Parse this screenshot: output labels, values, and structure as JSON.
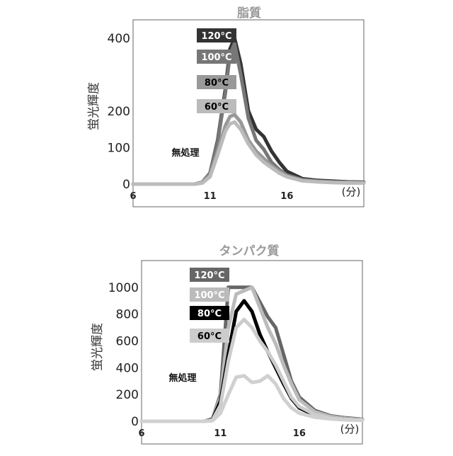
{
  "chart_data": [
    {
      "type": "line",
      "title": "脂質",
      "ylabel": "蛍光輝度",
      "xunit": "(分)",
      "annotation": "無処理",
      "xlim": [
        6,
        21
      ],
      "ylim": [
        0,
        450
      ],
      "xticks": [
        6,
        11,
        16
      ],
      "yticks": [
        0,
        100,
        200,
        400
      ],
      "series": [
        {
          "name": "120°C",
          "color": "#333333",
          "x": [
            6,
            10,
            10.5,
            11,
            11.5,
            12,
            12.3,
            12.6,
            13,
            13.5,
            14,
            14.5,
            15,
            15.5,
            16,
            17,
            18,
            19,
            20,
            21
          ],
          "y": [
            0,
            0,
            5,
            30,
            120,
            260,
            370,
            400,
            330,
            200,
            150,
            130,
            90,
            60,
            35,
            15,
            10,
            8,
            6,
            5
          ]
        },
        {
          "name": "100°C",
          "color": "#777777",
          "x": [
            6,
            10,
            10.5,
            11,
            11.5,
            12,
            12.3,
            12.6,
            13,
            13.5,
            14,
            14.5,
            15,
            15.5,
            16,
            17,
            18,
            19,
            20,
            21
          ],
          "y": [
            0,
            0,
            5,
            30,
            115,
            250,
            355,
            385,
            300,
            180,
            120,
            95,
            60,
            40,
            25,
            12,
            8,
            6,
            5,
            4
          ]
        },
        {
          "name": "80°C",
          "color": "#999999",
          "x": [
            6,
            10,
            10.5,
            11,
            11.5,
            12,
            12.3,
            12.6,
            13,
            13.5,
            14,
            14.5,
            15,
            15.5,
            16,
            17,
            18,
            19,
            20,
            21
          ],
          "y": [
            0,
            0,
            4,
            25,
            90,
            160,
            185,
            190,
            170,
            120,
            90,
            70,
            50,
            35,
            22,
            10,
            7,
            5,
            4,
            3
          ]
        },
        {
          "name": "60°C",
          "color": "#bbbbbb",
          "x": [
            6,
            10,
            10.5,
            11,
            11.5,
            12,
            12.3,
            12.6,
            13,
            13.5,
            14,
            14.5,
            15,
            15.5,
            16,
            17,
            18,
            19,
            20,
            21
          ],
          "y": [
            0,
            0,
            3,
            20,
            80,
            145,
            165,
            170,
            150,
            110,
            80,
            60,
            45,
            30,
            20,
            9,
            6,
            4,
            3,
            3
          ]
        }
      ]
    },
    {
      "type": "line",
      "title": "タンパク質",
      "ylabel": "蛍光輝度",
      "xunit": "(分)",
      "annotation": "無処理",
      "xlim": [
        6,
        20
      ],
      "ylim": [
        0,
        1200
      ],
      "xticks": [
        6,
        11,
        16
      ],
      "yticks": [
        0,
        200,
        400,
        600,
        800,
        1000
      ],
      "series": [
        {
          "name": "120°C",
          "color": "#666666",
          "x": [
            6,
            10,
            10.5,
            11,
            11.5,
            12,
            13,
            14,
            14.5,
            15,
            15.5,
            16,
            17,
            18,
            19,
            20
          ],
          "y": [
            0,
            0,
            20,
            200,
            1000,
            1000,
            1000,
            780,
            700,
            500,
            300,
            180,
            80,
            40,
            25,
            15
          ]
        },
        {
          "name": "100°C",
          "color": "#bbbbbb",
          "x": [
            6,
            10,
            10.5,
            11,
            11.5,
            12,
            13,
            14,
            14.5,
            15,
            15.5,
            16,
            17,
            18,
            19,
            20
          ],
          "y": [
            0,
            0,
            20,
            180,
            700,
            950,
            1000,
            700,
            580,
            420,
            280,
            160,
            70,
            35,
            20,
            12
          ]
        },
        {
          "name": "80°C",
          "color": "#000000",
          "x": [
            6,
            10,
            10.5,
            11,
            11.5,
            12,
            12.5,
            13,
            13.5,
            14,
            14.5,
            15,
            15.5,
            16,
            17,
            18,
            19,
            20
          ],
          "y": [
            0,
            0,
            15,
            150,
            500,
            820,
            900,
            820,
            650,
            520,
            400,
            280,
            170,
            100,
            45,
            25,
            15,
            10
          ]
        },
        {
          "name": "60°C",
          "color": "#cccccc",
          "x": [
            6,
            10,
            10.5,
            11,
            11.5,
            12,
            12.5,
            13,
            13.5,
            14,
            14.5,
            15,
            15.5,
            16,
            17,
            18,
            19,
            20
          ],
          "y": [
            0,
            0,
            10,
            120,
            450,
            700,
            760,
            700,
            600,
            520,
            420,
            300,
            180,
            110,
            50,
            25,
            15,
            10
          ]
        },
        {
          "name": "無処理",
          "color": "#d0d0d0",
          "x": [
            6,
            10,
            10.5,
            11,
            11.5,
            12,
            12.5,
            13,
            13.5,
            14,
            14.5,
            15,
            15.5,
            16,
            17,
            18,
            19,
            20
          ],
          "y": [
            0,
            0,
            5,
            60,
            200,
            330,
            340,
            290,
            300,
            340,
            280,
            170,
            100,
            60,
            30,
            18,
            10,
            8
          ]
        }
      ]
    }
  ]
}
